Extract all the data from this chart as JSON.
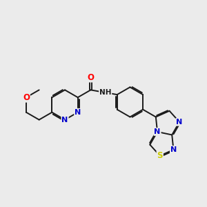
{
  "background_color": "#ebebeb",
  "bond_color": "#1a1a1a",
  "atom_colors": {
    "O": "#ff0000",
    "N": "#0000cc",
    "S": "#cccc00",
    "C": "#1a1a1a"
  },
  "figsize": [
    3.0,
    3.0
  ],
  "dpi": 100
}
